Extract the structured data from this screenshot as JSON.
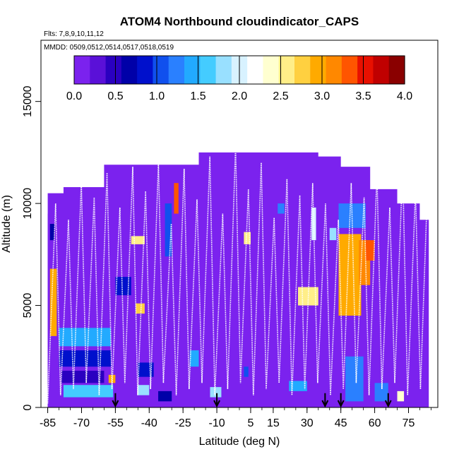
{
  "chart_data": {
    "type": "heatmap",
    "title": "ATOM4 Northbound cloudindicator_CAPS",
    "flights_note": "Flts: 7,8,9,10,11,12",
    "dates_note": "MMDD: 0509,0512,0514,0517,0518,0519",
    "xlabel": "Latitude (deg N)",
    "ylabel": "Altitude (m)",
    "xlim": [
      -88,
      88
    ],
    "ylim": [
      0,
      18000
    ],
    "x_ticks": [
      -85,
      -70,
      -55,
      -40,
      -25,
      -10,
      5,
      15,
      30,
      45,
      60,
      75
    ],
    "y_ticks": [
      0,
      5000,
      10000,
      15000
    ],
    "colorbar": {
      "range": [
        0,
        4
      ],
      "ticks": [
        "0.0",
        "0.5",
        "1.0",
        "1.5",
        "2.0",
        "2.5",
        "3.0",
        "3.5",
        "4.0"
      ],
      "colors": [
        "#7b22ee",
        "#5a10d8",
        "#2a00c0",
        "#0000a8",
        "#0010cc",
        "#1050ee",
        "#2a80ff",
        "#22aaff",
        "#44ccff",
        "#99e0ff",
        "#d8f2ff",
        "#ffffff",
        "#ffffd0",
        "#ffee88",
        "#ffd040",
        "#ffaa00",
        "#ff8800",
        "#ff5500",
        "#e81000",
        "#c00000",
        "#8a0000"
      ]
    },
    "background_value": 0.0,
    "arrow_latitudes": [
      -55,
      -10,
      38,
      45,
      66
    ],
    "ceiling_profile": [
      [
        -85,
        10500
      ],
      [
        -78,
        10500
      ],
      [
        -78,
        10800
      ],
      [
        -60,
        10800
      ],
      [
        -60,
        11900
      ],
      [
        -18,
        11900
      ],
      [
        -18,
        12500
      ],
      [
        35,
        12500
      ],
      [
        35,
        12300
      ],
      [
        45,
        12300
      ],
      [
        45,
        11800
      ],
      [
        58,
        11800
      ],
      [
        58,
        10700
      ],
      [
        70,
        10700
      ],
      [
        70,
        10000
      ],
      [
        80,
        10000
      ],
      [
        80,
        9200
      ],
      [
        84,
        9200
      ]
    ],
    "cells": [
      {
        "lat": [
          -85,
          -82
        ],
        "alt": [
          0,
          9500
        ],
        "v": 0.0
      },
      {
        "lat": [
          -84,
          -81
        ],
        "alt": [
          3500,
          6800
        ],
        "v": 2.9
      },
      {
        "lat": [
          -84,
          -82
        ],
        "alt": [
          8200,
          9000
        ],
        "v": 0.7
      },
      {
        "lat": [
          -80,
          -57
        ],
        "alt": [
          3000,
          3900
        ],
        "v": 1.4
      },
      {
        "lat": [
          -80,
          -57
        ],
        "alt": [
          2000,
          2800
        ],
        "v": 0.9
      },
      {
        "lat": [
          -79,
          -60
        ],
        "alt": [
          1200,
          1800
        ],
        "v": 0.5
      },
      {
        "lat": [
          -78,
          -56
        ],
        "alt": [
          500,
          1100
        ],
        "v": 1.6
      },
      {
        "lat": [
          -58,
          -55
        ],
        "alt": [
          1200,
          1600
        ],
        "v": 2.9
      },
      {
        "lat": [
          -55,
          -48
        ],
        "alt": [
          5500,
          6400
        ],
        "v": 0.8
      },
      {
        "lat": [
          -48,
          -42
        ],
        "alt": [
          8000,
          8400
        ],
        "v": 2.6
      },
      {
        "lat": [
          -46,
          -42
        ],
        "alt": [
          4600,
          5100
        ],
        "v": 2.7
      },
      {
        "lat": [
          -45,
          -40
        ],
        "alt": [
          600,
          1100
        ],
        "v": 1.9
      },
      {
        "lat": [
          -45,
          -38
        ],
        "alt": [
          1500,
          2200
        ],
        "v": 0.8
      },
      {
        "lat": [
          -36,
          -30
        ],
        "alt": [
          300,
          800
        ],
        "v": 0.6
      },
      {
        "lat": [
          -33,
          -30
        ],
        "alt": [
          7400,
          10000
        ],
        "v": 1.1
      },
      {
        "lat": [
          -29,
          -27
        ],
        "alt": [
          9500,
          11000
        ],
        "v": 3.4
      },
      {
        "lat": [
          -22,
          -18
        ],
        "alt": [
          2000,
          2800
        ],
        "v": 1.5
      },
      {
        "lat": [
          -13,
          -8
        ],
        "alt": [
          500,
          1000
        ],
        "v": 1.8
      },
      {
        "lat": [
          2,
          5
        ],
        "alt": [
          8000,
          8600
        ],
        "v": 2.6
      },
      {
        "lat": [
          2,
          4
        ],
        "alt": [
          1500,
          2000
        ],
        "v": 1.0
      },
      {
        "lat": [
          17,
          20
        ],
        "alt": [
          9500,
          10000
        ],
        "v": 1.2
      },
      {
        "lat": [
          22,
          30
        ],
        "alt": [
          800,
          1300
        ],
        "v": 1.4
      },
      {
        "lat": [
          26,
          35
        ],
        "alt": [
          5000,
          5900
        ],
        "v": 2.5
      },
      {
        "lat": [
          32,
          34
        ],
        "alt": [
          8200,
          9800
        ],
        "v": 2.0
      },
      {
        "lat": [
          40,
          43
        ],
        "alt": [
          8200,
          8800
        ],
        "v": 1.9
      },
      {
        "lat": [
          44,
          54
        ],
        "alt": [
          4500,
          8500
        ],
        "v": 3.0
      },
      {
        "lat": [
          44,
          56
        ],
        "alt": [
          8800,
          10000
        ],
        "v": 1.2
      },
      {
        "lat": [
          53,
          58
        ],
        "alt": [
          6000,
          8200
        ],
        "v": 3.1
      },
      {
        "lat": [
          47,
          55
        ],
        "alt": [
          300,
          2500
        ],
        "v": 1.3
      },
      {
        "lat": [
          56,
          60
        ],
        "alt": [
          7200,
          8200
        ],
        "v": 3.3
      },
      {
        "lat": [
          60,
          66
        ],
        "alt": [
          300,
          1200
        ],
        "v": 1.2
      },
      {
        "lat": [
          70,
          73
        ],
        "alt": [
          300,
          800
        ],
        "v": 2.4
      }
    ]
  }
}
